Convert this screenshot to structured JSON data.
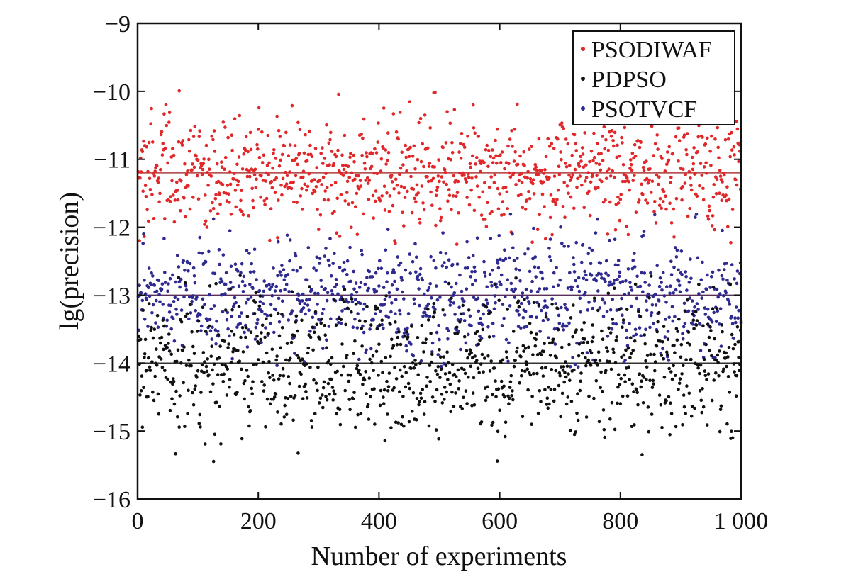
{
  "chart_data": {
    "type": "scatter",
    "title": "",
    "xlabel": "Number of experiments",
    "ylabel": "lg(precision)",
    "xlim": [
      0,
      1000
    ],
    "ylim": [
      -16,
      -9
    ],
    "x_ticks": [
      0,
      200,
      400,
      600,
      800,
      1000
    ],
    "x_tick_labels": [
      "0",
      "200",
      "400",
      "600",
      "800",
      "1 000"
    ],
    "y_ticks": [
      -9,
      -10,
      -11,
      -12,
      -13,
      -14,
      -15,
      -16
    ],
    "y_tick_labels": [
      "−9",
      "−10",
      "−11",
      "−12",
      "−13",
      "−14",
      "−15",
      "−16"
    ],
    "grid": false,
    "legend_position": "top-right",
    "points_per_series": 1000,
    "series": [
      {
        "name": "PSODIWAF",
        "color": "#e0282a",
        "mean": -11.2,
        "std": 0.42,
        "min_observed": -12.3,
        "max_observed": -9.55,
        "seed": 11
      },
      {
        "name": "PDPSO",
        "color": "#111111",
        "mean": -14.0,
        "std": 0.52,
        "min_observed": -15.6,
        "max_observed": -12.7,
        "seed": 23
      },
      {
        "name": "PSOTVCF",
        "color": "#2e2a8f",
        "mean": -13.0,
        "std": 0.42,
        "min_observed": -14.1,
        "max_observed": -11.8,
        "seed": 37
      }
    ],
    "mean_lines": [
      {
        "series": "PSODIWAF",
        "y": -11.2,
        "color": "#b03a3a"
      },
      {
        "series": "PSOTVCF",
        "y": -13.0,
        "color": "#5a2f5a"
      },
      {
        "series": "PDPSO",
        "y": -14.0,
        "color": "#333333"
      }
    ]
  }
}
